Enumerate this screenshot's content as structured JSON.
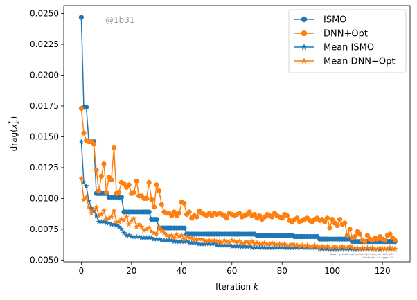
{
  "chart_data": {
    "type": "line",
    "title": "",
    "xlabel": "Iteration",
    "xlabel_var": "k",
    "ylabel": "drag(",
    "ylabel_var": "x",
    "ylabel_sub": "k",
    "ylabel_sup": "*",
    "ylabel_close": ")",
    "watermark": "@1b31",
    "footnote_lines": [
      "Repo: github.com/kjetil-lye/ismo_airfoil.git",
      "Hostname: nu.hpgpu.41"
    ],
    "xlim": [
      -7,
      131
    ],
    "ylim": [
      0.00485,
      0.02565
    ],
    "xticks": [
      0,
      20,
      40,
      60,
      80,
      100,
      120
    ],
    "yticks": [
      0.005,
      0.0075,
      0.01,
      0.0125,
      0.015,
      0.0175,
      0.02,
      0.0225,
      0.025
    ],
    "ytick_labels": [
      "0.0050",
      "0.0075",
      "0.0100",
      "0.0125",
      "0.0150",
      "0.0175",
      "0.0200",
      "0.0225",
      "0.0250"
    ],
    "grid": false,
    "legend_position": "top-right",
    "x_range": [
      0,
      125
    ],
    "series": [
      {
        "name": "ISMO",
        "color": "#1f77b4",
        "marker": "circle",
        "piecewise": [
          [
            0,
            0.0247
          ],
          [
            1,
            0.0174
          ],
          [
            3,
            0.0146
          ],
          [
            6,
            0.0104
          ],
          [
            10,
            0.0104
          ],
          [
            11,
            0.0101
          ],
          [
            16,
            0.0101
          ],
          [
            17,
            0.0089
          ],
          [
            28,
            0.0083
          ],
          [
            31,
            0.0076
          ],
          [
            42,
            0.0071
          ],
          [
            70,
            0.007
          ],
          [
            85,
            0.0069
          ],
          [
            95,
            0.0067
          ],
          [
            108,
            0.0065
          ],
          [
            125,
            0.0065
          ]
        ]
      },
      {
        "name": "DNN+Opt",
        "color": "#ff7f0e",
        "marker": "circle",
        "values": [
          0.0173,
          0.0153,
          0.0147,
          0.0146,
          0.0146,
          0.0144,
          0.0123,
          0.0106,
          0.0118,
          0.0128,
          0.0105,
          0.0117,
          0.0115,
          0.0141,
          0.0104,
          0.0105,
          0.0113,
          0.0112,
          0.0109,
          0.0111,
          0.0104,
          0.0105,
          0.0114,
          0.0102,
          0.0102,
          0.01,
          0.01,
          0.0113,
          0.0099,
          0.0093,
          0.0111,
          0.0106,
          0.0095,
          0.0089,
          0.0088,
          0.0088,
          0.0086,
          0.0089,
          0.0086,
          0.0088,
          0.0097,
          0.0096,
          0.0087,
          0.0089,
          0.0084,
          0.0086,
          0.0085,
          0.009,
          0.0088,
          0.0087,
          0.0086,
          0.0088,
          0.0086,
          0.0088,
          0.0087,
          0.0088,
          0.0087,
          0.0086,
          0.0084,
          0.0088,
          0.0087,
          0.0086,
          0.0087,
          0.0088,
          0.0085,
          0.0086,
          0.0087,
          0.0089,
          0.0086,
          0.0087,
          0.0084,
          0.0086,
          0.0083,
          0.0085,
          0.0087,
          0.0086,
          0.0085,
          0.0088,
          0.0086,
          0.0085,
          0.0084,
          0.0087,
          0.0086,
          0.0082,
          0.0081,
          0.0083,
          0.0084,
          0.0081,
          0.0082,
          0.0083,
          0.0084,
          0.0082,
          0.0081,
          0.0083,
          0.0084,
          0.0082,
          0.0083,
          0.0081,
          0.0084,
          0.0076,
          0.0083,
          0.008,
          0.0078,
          0.0083,
          0.0079,
          0.008,
          0.007,
          0.0075,
          0.0068,
          0.0069,
          0.0073,
          0.0071,
          0.0066,
          0.0065,
          0.007,
          0.0067,
          0.0066,
          0.0068,
          0.0067,
          0.0069,
          0.0067,
          0.0066,
          0.007,
          0.0071,
          0.0068,
          0.0066
        ]
      },
      {
        "name": "Mean ISMO",
        "color": "#1f77b4",
        "marker": "star",
        "values": [
          0.0146,
          0.0113,
          0.011,
          0.0098,
          0.0092,
          0.009,
          0.0086,
          0.0081,
          0.0081,
          0.0081,
          0.008,
          0.008,
          0.0079,
          0.0079,
          0.0078,
          0.0077,
          0.0075,
          0.0072,
          0.007,
          0.007,
          0.0069,
          0.0069,
          0.0069,
          0.0069,
          0.0068,
          0.0068,
          0.0068,
          0.0068,
          0.0068,
          0.0067,
          0.0067,
          0.0067,
          0.0066,
          0.0066,
          0.0066,
          0.0066,
          0.0066,
          0.0065,
          0.0065,
          0.0065,
          0.0065,
          0.0065,
          0.0065,
          0.0064,
          0.0064,
          0.0064,
          0.0064,
          0.0063,
          0.0063,
          0.0063,
          0.0063,
          0.0063,
          0.0063,
          0.0063,
          0.0062,
          0.0062,
          0.0062,
          0.0062,
          0.0062,
          0.0062,
          0.0061,
          0.0061,
          0.0061,
          0.0061,
          0.0061,
          0.0061,
          0.0061,
          0.0061,
          0.006,
          0.006,
          0.006,
          0.006,
          0.006,
          0.006,
          0.006,
          0.006,
          0.006,
          0.006,
          0.006,
          0.006,
          0.006,
          0.006,
          0.006,
          0.006,
          0.006,
          0.006,
          0.006,
          0.006,
          0.006,
          0.006,
          0.006,
          0.006,
          0.006,
          0.006,
          0.006,
          0.0059,
          0.0059,
          0.0059,
          0.0059,
          0.0059,
          0.0059,
          0.0059,
          0.0059,
          0.0059,
          0.0059,
          0.0059,
          0.0059,
          0.0059,
          0.0059,
          0.0059,
          0.0059,
          0.0059,
          0.0059,
          0.0059,
          0.0059,
          0.0059,
          0.0059,
          0.0059,
          0.0059,
          0.0059,
          0.0059,
          0.0059,
          0.0059,
          0.0059,
          0.0059,
          0.0059
        ]
      },
      {
        "name": "Mean DNN+Opt",
        "color": "#ff7f0e",
        "marker": "star",
        "values": [
          0.0116,
          0.0099,
          0.0101,
          0.0093,
          0.0088,
          0.0091,
          0.0093,
          0.0086,
          0.0087,
          0.009,
          0.0083,
          0.0084,
          0.0085,
          0.009,
          0.0081,
          0.0081,
          0.0083,
          0.0082,
          0.0085,
          0.0079,
          0.0082,
          0.0084,
          0.0077,
          0.0079,
          0.0077,
          0.0074,
          0.0075,
          0.0076,
          0.0073,
          0.0072,
          0.0071,
          0.0077,
          0.0074,
          0.0072,
          0.007,
          0.0069,
          0.007,
          0.0068,
          0.0071,
          0.0069,
          0.007,
          0.0067,
          0.0069,
          0.0068,
          0.0068,
          0.0066,
          0.0067,
          0.0067,
          0.0067,
          0.0066,
          0.0065,
          0.0066,
          0.0065,
          0.0066,
          0.0065,
          0.0065,
          0.0064,
          0.0066,
          0.0065,
          0.0064,
          0.0066,
          0.0065,
          0.0064,
          0.0065,
          0.0064,
          0.0064,
          0.0065,
          0.0063,
          0.0065,
          0.0063,
          0.0064,
          0.0063,
          0.0063,
          0.0064,
          0.0063,
          0.0063,
          0.0064,
          0.0063,
          0.0062,
          0.0063,
          0.0062,
          0.0063,
          0.0062,
          0.0062,
          0.0063,
          0.0062,
          0.0062,
          0.0061,
          0.0062,
          0.0061,
          0.0062,
          0.0061,
          0.0061,
          0.0062,
          0.0061,
          0.006,
          0.0061,
          0.006,
          0.0061,
          0.006,
          0.006,
          0.0061,
          0.006,
          0.006,
          0.0061,
          0.006,
          0.006,
          0.0061,
          0.006,
          0.006,
          0.006,
          0.0059,
          0.006,
          0.0059,
          0.006,
          0.0059,
          0.006,
          0.0059,
          0.0059,
          0.006,
          0.0059,
          0.0059,
          0.0059,
          0.006,
          0.0059,
          0.0059
        ]
      }
    ]
  }
}
